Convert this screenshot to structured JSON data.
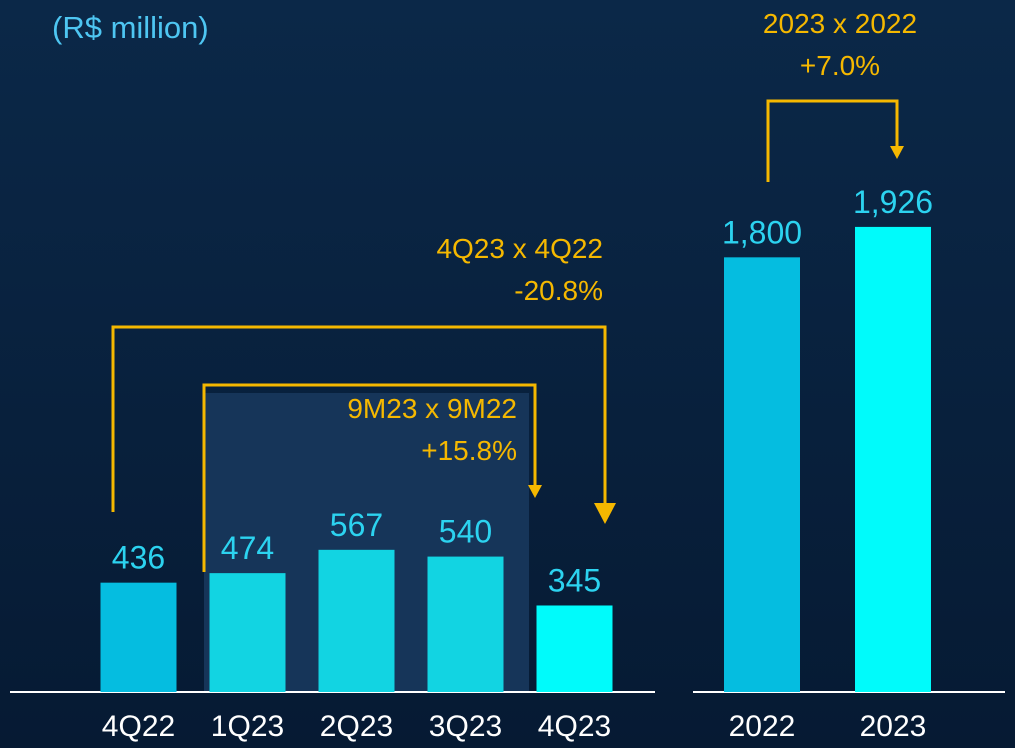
{
  "chart_data": [
    {
      "type": "bar",
      "subtitle": "(R$ million)",
      "categories": [
        "4Q22",
        "1Q23",
        "2Q23",
        "3Q23",
        "4Q23"
      ],
      "values": [
        436,
        474,
        567,
        540,
        345
      ],
      "colors": [
        "#05bde0",
        "#12d4e2",
        "#12d4e2",
        "#12d4e2",
        "#00fbfb"
      ],
      "ylim": [
        0,
        2600
      ],
      "annotations": [
        {
          "lines": [
            "4Q23 x 4Q22",
            "-20.8%"
          ]
        },
        {
          "lines": [
            "9M23 x 9M22",
            "+15.8%"
          ]
        }
      ]
    },
    {
      "type": "bar",
      "categories": [
        "2022",
        "2023"
      ],
      "values": [
        1800,
        1926
      ],
      "value_labels": [
        "1,800",
        "1,926"
      ],
      "colors": [
        "#05bde0",
        "#00fbfb"
      ],
      "ylim": [
        0,
        2700
      ],
      "annotations": [
        {
          "lines": [
            "2023 x 2022",
            "+7.0%"
          ]
        }
      ]
    }
  ]
}
